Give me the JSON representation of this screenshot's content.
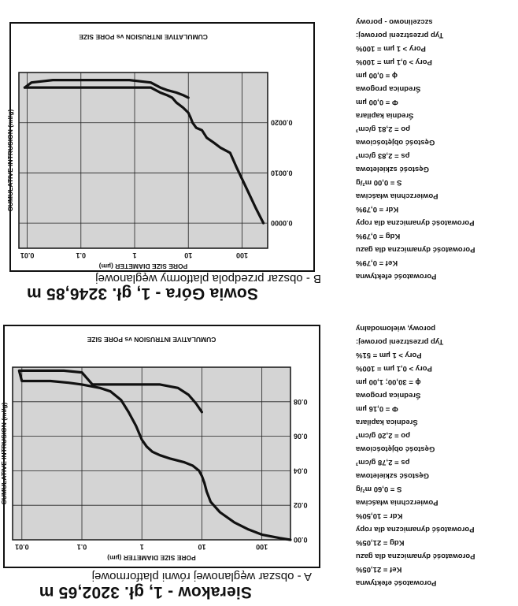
{
  "panels": [
    {
      "id": "A",
      "title": "Sierakow - 1, gł. 3202,65 m",
      "subtitle": "A - obszar węglanowej równi platformowej",
      "chart_data": {
        "type": "line",
        "title": "CUMULATIVE INTRUSION vs PORE SIZE",
        "xlabel": "PORE SIZE DIAMETER (µm)",
        "ylabel": "CUMULATIVE INTRUSION (ml/g)",
        "x_scale": "log",
        "x_ticks": [
          "100",
          "10",
          "1",
          "0.1",
          "0.01"
        ],
        "y_ticks": [
          "0.00",
          "0.02",
          "0.04",
          "0.06",
          "0.08"
        ],
        "xlim": [
          300,
          0.007
        ],
        "ylim": [
          0,
          0.1
        ],
        "grid": true,
        "series": [
          {
            "name": "",
            "x": [
              300,
              200,
              100,
              60,
              35,
              20,
              14,
              12,
              11,
              10,
              9,
              7,
              5,
              3,
              2,
              1.5,
              1.2,
              1,
              0.8,
              0.6,
              0.45,
              0.3,
              0.2,
              0.1,
              0.06,
              0.03,
              0.015,
              0.01,
              0.009,
              0.012,
              0.03,
              0.05,
              0.1,
              0.15,
              0.3,
              1,
              2,
              4,
              6,
              8,
              10
            ],
            "y": [
              0.0,
              0.001,
              0.003,
              0.006,
              0.01,
              0.016,
              0.022,
              0.028,
              0.033,
              0.037,
              0.04,
              0.043,
              0.045,
              0.047,
              0.049,
              0.051,
              0.054,
              0.058,
              0.066,
              0.074,
              0.081,
              0.086,
              0.088,
              0.09,
              0.091,
              0.092,
              0.092,
              0.092,
              0.098,
              0.098,
              0.098,
              0.098,
              0.097,
              0.09,
              0.09,
              0.09,
              0.09,
              0.088,
              0.084,
              0.079,
              0.074
            ]
          }
        ]
      },
      "properties": [
        "Porowatość efektywna",
        "Kef = 21,05%",
        "Porowatość dynamiczna dla gazu",
        "Kdg = 21,05%",
        "Porowatość dynamiczna dla ropy",
        "Kdr = 10,50%",
        "Powierzchnia właściwa",
        "S = 0,60 m²/g",
        "Gęstość szkieletowa",
        "ρs = 2,78 g/cm³",
        "Gęstość objętościowa",
        "ρo = 2,20 g/cm³",
        "Średnica kapilara",
        "Φ = 0,16 µm",
        "Średnica progowa",
        "ϕ = 30,00; 1,00 µm",
        "Pory > 0,1 µm = 100%",
        "Pory > 1 µm = 51%",
        "Typ przestrzeni porowej:",
        "porowy, wielomodalny"
      ]
    },
    {
      "id": "B",
      "title": "Sowia Góra - 1, gł. 3246,85 m",
      "subtitle": "B - obszar przedpola platformy węglanowej",
      "chart_data": {
        "type": "line",
        "title": "CUMULATIVE INTRUSION vs PORE SIZE",
        "xlabel": "PORE SIZE DIAMETER (µm)",
        "ylabel": "CUMULATIVE INTRUSION (ml/g)",
        "x_scale": "log",
        "x_ticks": [
          "100",
          "10",
          "1",
          "0.1",
          "0.01"
        ],
        "y_ticks": [
          "0.0000",
          "0.0010",
          "0.0020"
        ],
        "xlim": [
          300,
          0.007
        ],
        "ylim": [
          -0.0005,
          0.003
        ],
        "grid": true,
        "series": [
          {
            "name": "",
            "x": [
              0.009,
              0.012,
              0.03,
              0.1,
              0.3,
              0.8,
              2,
              3,
              4,
              6,
              8,
              10
            ],
            "y": [
              0.0027,
              0.0028,
              0.00285,
              0.00285,
              0.00285,
              0.00285,
              0.0028,
              0.0027,
              0.00265,
              0.0026,
              0.00255,
              0.0025
            ]
          },
          {
            "name": "",
            "x": [
              0.009,
              0.012,
              0.03,
              0.1,
              0.3,
              0.8,
              1.2,
              2,
              3,
              4,
              5,
              6,
              8,
              10,
              11,
              12,
              14,
              18,
              22,
              30,
              40,
              60,
              80,
              120,
              180,
              250
            ],
            "y": [
              0.0027,
              0.0027,
              0.0027,
              0.0027,
              0.0027,
              0.0027,
              0.0027,
              0.0027,
              0.0026,
              0.00255,
              0.0025,
              0.0024,
              0.0023,
              0.0022,
              0.0021,
              0.002,
              0.0019,
              0.00185,
              0.0017,
              0.0016,
              0.0015,
              0.0014,
              0.0011,
              0.0007,
              0.0003,
              0.0
            ]
          }
        ]
      },
      "properties": [
        "Porowatość efektywna",
        "Kef = 0,79%",
        "Porowatość dynamiczna dla gazu",
        "Kdg = 0,79%",
        "Porowatość dynamiczna dla ropy",
        "Kdr = 0,79%",
        "Powierzchnia właściwa",
        "S = 0,00 m²/g",
        "Gęstość szkieletowa",
        "ρs = 2,83 g/cm³",
        "Gęstość objętościowa",
        "ρo = 2,81 g/cm³",
        "Średnia kapilara",
        "Φ = 0,00 µm",
        "Średnica progowa",
        "ϕ = 0,00 µm",
        "Pory > 0,1 µm = 100%",
        "Pory > 1 µm = 100%",
        "Typ przestrzeni porowej:",
        "szczelinowo - porowy"
      ]
    }
  ]
}
